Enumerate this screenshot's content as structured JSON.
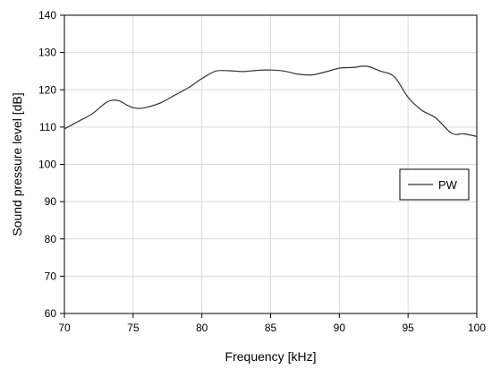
{
  "chart_data": {
    "type": "line",
    "title": "",
    "xlabel": "Frequency [kHz]",
    "ylabel": "Sound pressure level [dB]",
    "xlim": [
      70,
      100
    ],
    "ylim": [
      60,
      140
    ],
    "xticks": [
      70,
      75,
      80,
      85,
      90,
      95,
      100
    ],
    "yticks": [
      60,
      70,
      80,
      90,
      100,
      110,
      120,
      130,
      140
    ],
    "grid": true,
    "legend_position": "right",
    "series": [
      {
        "name": "PW",
        "color": "#333333",
        "x": [
          70,
          71,
          72,
          73,
          73.5,
          74,
          74.5,
          75,
          75.5,
          76,
          77,
          78,
          79,
          80,
          81,
          82,
          83,
          84,
          85,
          86,
          87,
          88,
          89,
          90,
          91,
          92,
          93,
          94,
          95,
          96,
          97,
          98,
          98.5,
          99,
          100
        ],
        "y": [
          109.5,
          111.5,
          113.5,
          116.5,
          117.2,
          117.0,
          116.0,
          115.2,
          115.0,
          115.3,
          116.5,
          118.5,
          120.5,
          123.0,
          125.0,
          125.1,
          124.9,
          125.2,
          125.3,
          125.0,
          124.2,
          124.0,
          124.8,
          125.8,
          126.0,
          126.3,
          125.0,
          123.5,
          118.0,
          114.5,
          112.5,
          108.8,
          108.0,
          108.2,
          107.5
        ]
      }
    ]
  }
}
